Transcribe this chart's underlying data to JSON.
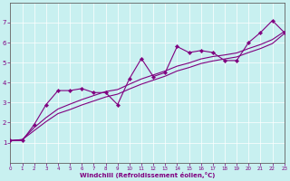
{
  "bg_color": "#c8f0f0",
  "line_color": "#800080",
  "grid_color": "#ffffff",
  "xlabel": "Windchill (Refroidissement éolien,°C)",
  "xmin": 0,
  "xmax": 23,
  "ymin": 0,
  "ymax": 8,
  "xticks": [
    0,
    1,
    2,
    3,
    4,
    5,
    6,
    7,
    8,
    9,
    10,
    11,
    12,
    13,
    14,
    15,
    16,
    17,
    18,
    19,
    20,
    21,
    22,
    23
  ],
  "yticks": [
    1,
    2,
    3,
    4,
    5,
    6,
    7
  ],
  "zigzag_x": [
    0,
    1,
    2,
    3,
    4,
    5,
    6,
    7,
    8,
    9,
    10,
    11,
    12,
    13,
    14,
    15,
    16,
    17,
    18,
    19,
    20,
    21,
    22,
    23
  ],
  "zigzag_y": [
    1.1,
    1.1,
    1.9,
    2.9,
    3.6,
    3.6,
    3.7,
    3.5,
    3.5,
    2.9,
    4.2,
    5.2,
    4.3,
    4.5,
    5.8,
    5.5,
    5.6,
    5.5,
    5.1,
    5.1,
    6.0,
    6.5,
    7.1,
    6.5
  ],
  "smooth1_x": [
    0,
    1,
    2,
    3,
    4,
    5,
    6,
    7,
    8,
    9,
    10,
    11,
    12,
    13,
    14,
    15,
    16,
    17,
    18,
    19,
    20,
    21,
    22,
    23
  ],
  "smooth1_y": [
    1.1,
    1.15,
    1.6,
    2.05,
    2.45,
    2.65,
    2.88,
    3.08,
    3.28,
    3.42,
    3.68,
    3.92,
    4.12,
    4.32,
    4.58,
    4.75,
    4.95,
    5.08,
    5.18,
    5.28,
    5.5,
    5.7,
    5.95,
    6.45
  ],
  "smooth2_x": [
    0,
    1,
    2,
    3,
    4,
    5,
    6,
    7,
    8,
    9,
    10,
    11,
    12,
    13,
    14,
    15,
    16,
    17,
    18,
    19,
    20,
    21,
    22,
    23
  ],
  "smooth2_y": [
    1.1,
    1.15,
    1.75,
    2.25,
    2.68,
    2.92,
    3.15,
    3.35,
    3.55,
    3.65,
    3.92,
    4.18,
    4.38,
    4.58,
    4.82,
    4.98,
    5.18,
    5.3,
    5.38,
    5.48,
    5.7,
    5.9,
    6.15,
    6.55
  ]
}
